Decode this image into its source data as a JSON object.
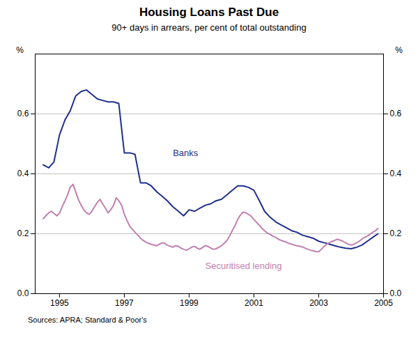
{
  "chart_data": {
    "type": "line",
    "title": "Housing Loans Past Due",
    "subtitle": "90+ days in arrears, per cent of total outstanding",
    "source": "Sources: APRA; Standard & Poor's",
    "ylabel": "%",
    "y2label": "%",
    "xlim": [
      1994.25,
      2005.0
    ],
    "xticks": [
      1995,
      1997,
      1999,
      2001,
      2003,
      2005
    ],
    "ylim": [
      0.0,
      0.8
    ],
    "yticks": [
      {
        "value": 0.0,
        "label": "0.0"
      },
      0.2,
      0.4,
      0.6
    ],
    "y2lim": [
      0.0,
      0.8
    ],
    "y2ticks": [
      {
        "value": 0.0,
        "label": "0.0"
      },
      0.2,
      0.4,
      0.6
    ],
    "grid": "y",
    "series": [
      {
        "name": "Banks",
        "color": "#1f2f8c",
        "x": [
          1994.5,
          1994.67,
          1994.83,
          1995.0,
          1995.17,
          1995.33,
          1995.5,
          1995.67,
          1995.83,
          1996.0,
          1996.17,
          1996.33,
          1996.5,
          1996.67,
          1996.83,
          1997.0,
          1997.17,
          1997.33,
          1997.5,
          1997.67,
          1997.83,
          1998.0,
          1998.17,
          1998.33,
          1998.5,
          1998.67,
          1998.83,
          1999.0,
          1999.17,
          1999.33,
          1999.5,
          1999.67,
          1999.83,
          2000.0,
          2000.17,
          2000.33,
          2000.5,
          2000.67,
          2000.83,
          2001.0,
          2001.17,
          2001.33,
          2001.5,
          2001.67,
          2001.83,
          2002.0,
          2002.17,
          2002.33,
          2002.5,
          2002.67,
          2002.83,
          2003.0,
          2003.17,
          2003.33,
          2003.5,
          2003.67,
          2003.83,
          2004.0,
          2004.17,
          2004.33,
          2004.5,
          2004.67,
          2004.83
        ],
        "values": [
          0.43,
          0.42,
          0.44,
          0.53,
          0.58,
          0.61,
          0.66,
          0.675,
          0.68,
          0.665,
          0.65,
          0.645,
          0.64,
          0.64,
          0.635,
          0.47,
          0.47,
          0.465,
          0.37,
          0.37,
          0.36,
          0.34,
          0.325,
          0.31,
          0.29,
          0.275,
          0.26,
          0.28,
          0.275,
          0.285,
          0.295,
          0.3,
          0.31,
          0.315,
          0.33,
          0.345,
          0.36,
          0.36,
          0.355,
          0.345,
          0.31,
          0.275,
          0.255,
          0.24,
          0.23,
          0.22,
          0.21,
          0.205,
          0.195,
          0.19,
          0.185,
          0.175,
          0.17,
          0.165,
          0.16,
          0.155,
          0.152,
          0.15,
          0.155,
          0.162,
          0.175,
          0.188,
          0.2
        ]
      },
      {
        "name": "Securitised lending",
        "color": "#c080b0",
        "x": [
          1994.5,
          1994.58,
          1994.67,
          1994.75,
          1994.83,
          1994.92,
          1995.0,
          1995.08,
          1995.17,
          1995.25,
          1995.33,
          1995.42,
          1995.5,
          1995.58,
          1995.67,
          1995.75,
          1995.83,
          1995.92,
          1996.0,
          1996.08,
          1996.17,
          1996.25,
          1996.33,
          1996.42,
          1996.5,
          1996.58,
          1996.67,
          1996.75,
          1996.83,
          1996.92,
          1997.0,
          1997.08,
          1997.17,
          1997.25,
          1997.33,
          1997.42,
          1997.5,
          1997.58,
          1997.67,
          1997.75,
          1997.83,
          1997.92,
          1998.0,
          1998.08,
          1998.17,
          1998.25,
          1998.33,
          1998.42,
          1998.5,
          1998.58,
          1998.67,
          1998.75,
          1998.83,
          1998.92,
          1999.0,
          1999.08,
          1999.17,
          1999.25,
          1999.33,
          1999.42,
          1999.5,
          1999.58,
          1999.67,
          1999.75,
          1999.83,
          1999.92,
          2000.0,
          2000.08,
          2000.17,
          2000.25,
          2000.33,
          2000.42,
          2000.5,
          2000.58,
          2000.67,
          2000.75,
          2000.83,
          2000.92,
          2001.0,
          2001.08,
          2001.17,
          2001.25,
          2001.33,
          2001.42,
          2001.5,
          2001.58,
          2001.67,
          2001.75,
          2001.83,
          2001.92,
          2002.0,
          2002.08,
          2002.17,
          2002.25,
          2002.33,
          2002.42,
          2002.5,
          2002.58,
          2002.67,
          2002.75,
          2002.83,
          2002.92,
          2003.0,
          2003.08,
          2003.17,
          2003.25,
          2003.33,
          2003.42,
          2003.5,
          2003.58,
          2003.67,
          2003.75,
          2003.83,
          2003.92,
          2004.0,
          2004.08,
          2004.17,
          2004.25,
          2004.33,
          2004.42,
          2004.5,
          2004.58,
          2004.67,
          2004.75,
          2004.83
        ],
        "values": [
          0.25,
          0.26,
          0.27,
          0.275,
          0.268,
          0.26,
          0.268,
          0.29,
          0.31,
          0.33,
          0.355,
          0.365,
          0.34,
          0.315,
          0.295,
          0.28,
          0.27,
          0.265,
          0.275,
          0.29,
          0.305,
          0.315,
          0.3,
          0.285,
          0.27,
          0.28,
          0.295,
          0.32,
          0.31,
          0.295,
          0.265,
          0.245,
          0.225,
          0.215,
          0.205,
          0.195,
          0.185,
          0.178,
          0.172,
          0.168,
          0.165,
          0.162,
          0.16,
          0.165,
          0.17,
          0.168,
          0.162,
          0.158,
          0.155,
          0.16,
          0.158,
          0.152,
          0.148,
          0.145,
          0.15,
          0.155,
          0.158,
          0.152,
          0.148,
          0.155,
          0.16,
          0.158,
          0.152,
          0.148,
          0.15,
          0.155,
          0.16,
          0.168,
          0.178,
          0.192,
          0.21,
          0.228,
          0.248,
          0.262,
          0.272,
          0.27,
          0.265,
          0.258,
          0.248,
          0.238,
          0.228,
          0.218,
          0.21,
          0.202,
          0.198,
          0.192,
          0.188,
          0.182,
          0.178,
          0.175,
          0.172,
          0.168,
          0.165,
          0.162,
          0.16,
          0.158,
          0.156,
          0.152,
          0.148,
          0.145,
          0.143,
          0.14,
          0.14,
          0.148,
          0.158,
          0.165,
          0.17,
          0.175,
          0.178,
          0.182,
          0.178,
          0.175,
          0.17,
          0.165,
          0.162,
          0.165,
          0.17,
          0.175,
          0.182,
          0.188,
          0.192,
          0.198,
          0.205,
          0.21,
          0.218
        ]
      }
    ],
    "annotations": [
      {
        "text": "Banks",
        "x": 1998.5,
        "y": 0.46,
        "color": "#1f2f8c"
      },
      {
        "text": "Securitised lending",
        "x": 1999.5,
        "y": 0.082,
        "color": "#c080b0"
      }
    ]
  }
}
